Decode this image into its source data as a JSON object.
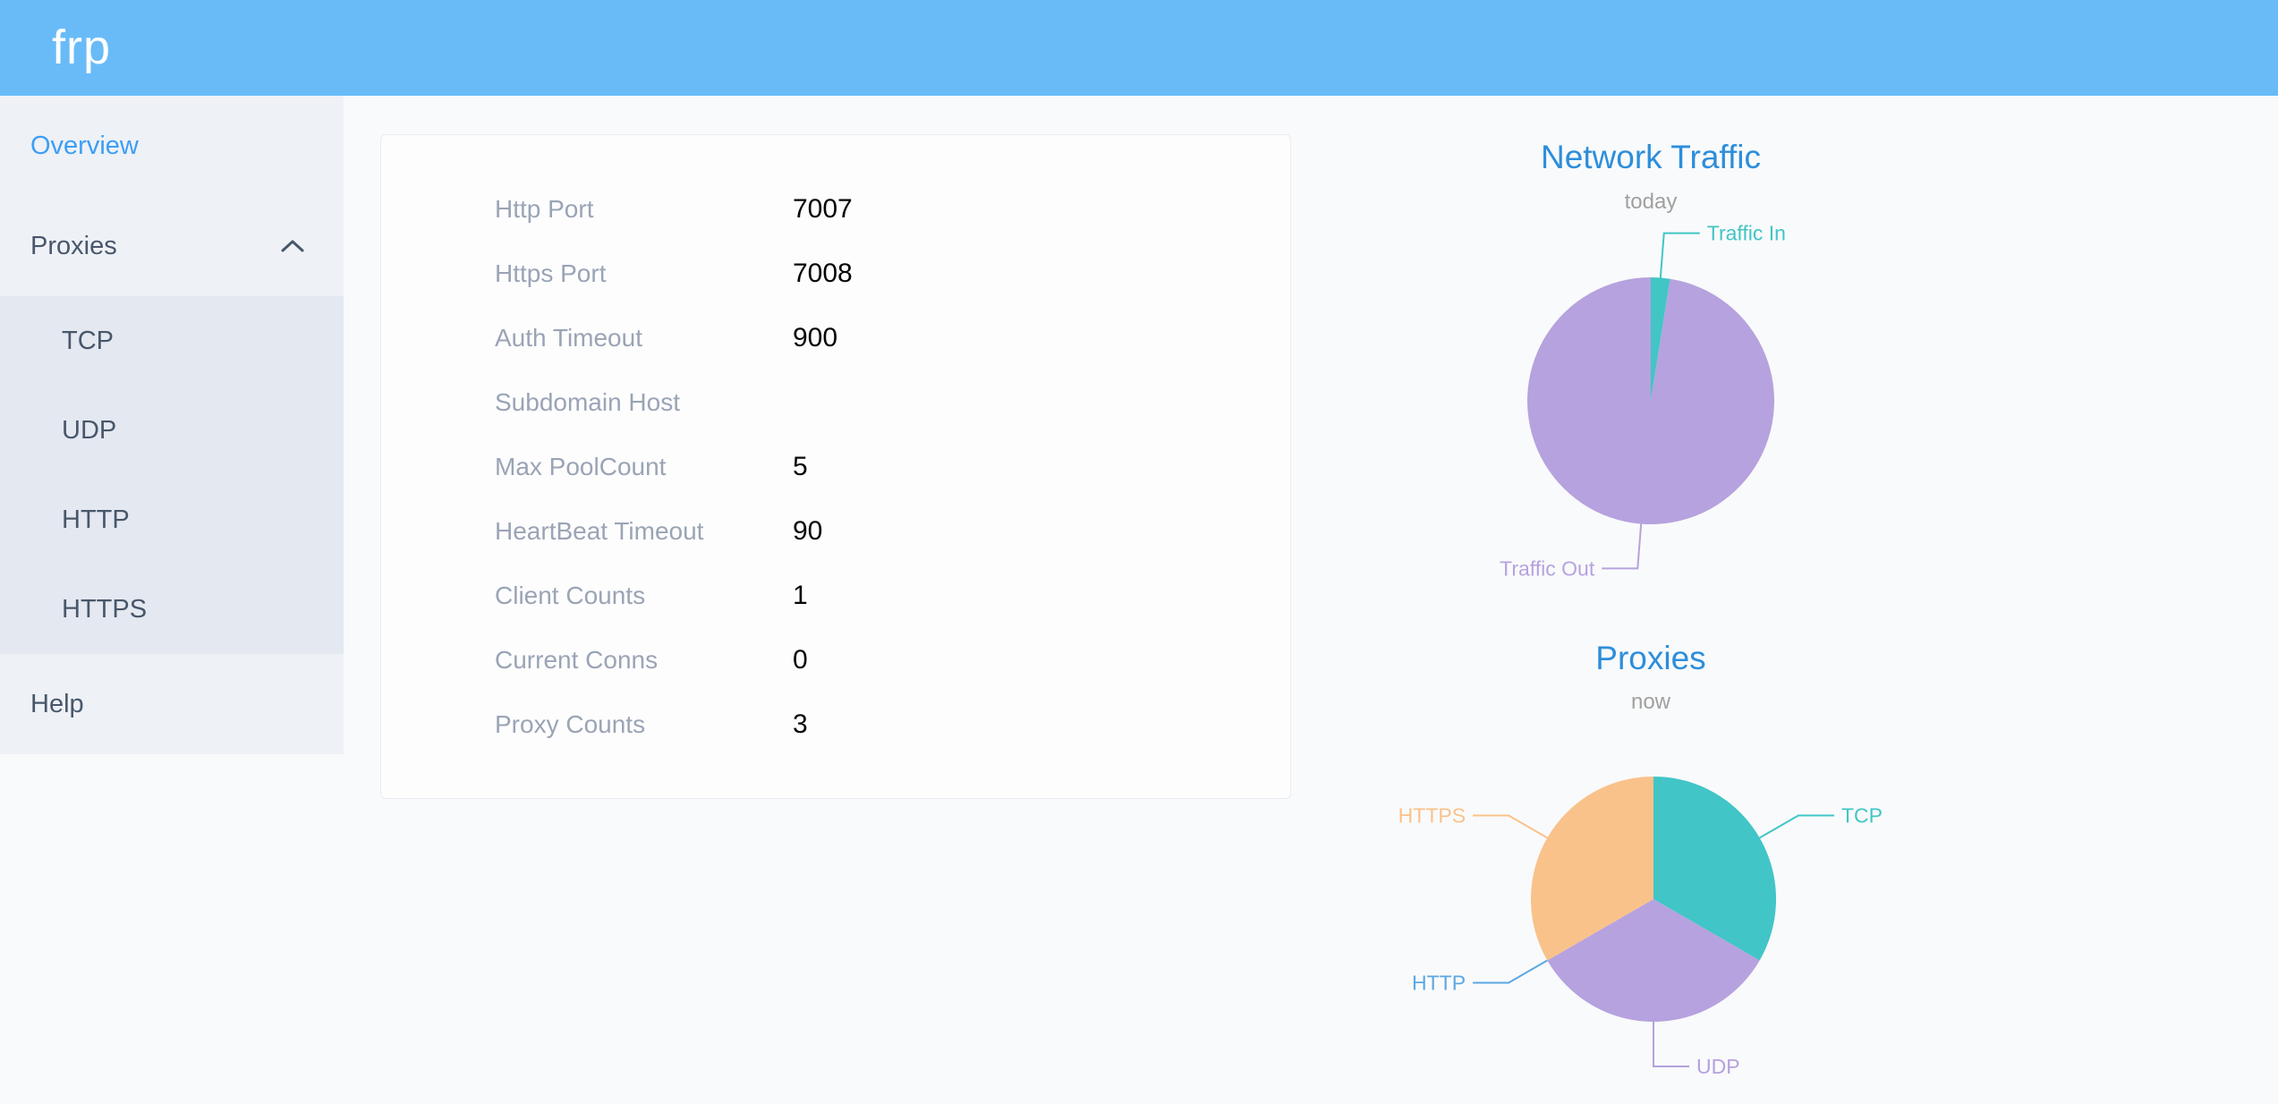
{
  "header": {
    "logo": "frp"
  },
  "sidebar": {
    "items": [
      {
        "label": "Overview",
        "active": true
      },
      {
        "label": "Proxies",
        "expanded": true,
        "children": [
          "TCP",
          "UDP",
          "HTTP",
          "HTTPS"
        ]
      },
      {
        "label": "Help"
      }
    ]
  },
  "server_info": {
    "rows": [
      {
        "label": "Http Port",
        "value": "7007"
      },
      {
        "label": "Https Port",
        "value": "7008"
      },
      {
        "label": "Auth Timeout",
        "value": "900"
      },
      {
        "label": "Subdomain Host",
        "value": ""
      },
      {
        "label": "Max PoolCount",
        "value": "5"
      },
      {
        "label": "HeartBeat Timeout",
        "value": "90"
      },
      {
        "label": "Client Counts",
        "value": "1"
      },
      {
        "label": "Current Conns",
        "value": "0"
      },
      {
        "label": "Proxy Counts",
        "value": "3"
      }
    ]
  },
  "chart_data": [
    {
      "type": "pie",
      "title": "Network Traffic",
      "subtitle": "today",
      "values_unit": "share_estimated_percent",
      "start_angle": 90,
      "clockwise": true,
      "legend": "none",
      "labels": "outside-with-leader-lines",
      "series": [
        {
          "name": "Traffic In",
          "value": 2.5,
          "color": "#41c5c5"
        },
        {
          "name": "Traffic Out",
          "value": 97.5,
          "color": "#b6a2de"
        }
      ]
    },
    {
      "type": "pie",
      "title": "Proxies",
      "subtitle": "now",
      "values_unit": "proxy_count",
      "start_angle": 90,
      "clockwise": true,
      "legend": "none",
      "labels": "outside-with-leader-lines",
      "series": [
        {
          "name": "TCP",
          "value": 1,
          "color": "#41c5c7"
        },
        {
          "name": "UDP",
          "value": 1,
          "color": "#b6a2de"
        },
        {
          "name": "HTTP",
          "value": 0,
          "color": "#5ca7e3"
        },
        {
          "name": "HTTPS",
          "value": 1,
          "color": "#f9c28a"
        }
      ]
    }
  ],
  "colors": {
    "header_bg": "#69bbf8",
    "active_menu": "#3d9ef5",
    "chart_title": "#2d8edb",
    "sidebar_bg": "#eef1f6",
    "submenu_bg": "#e4e8f1"
  }
}
